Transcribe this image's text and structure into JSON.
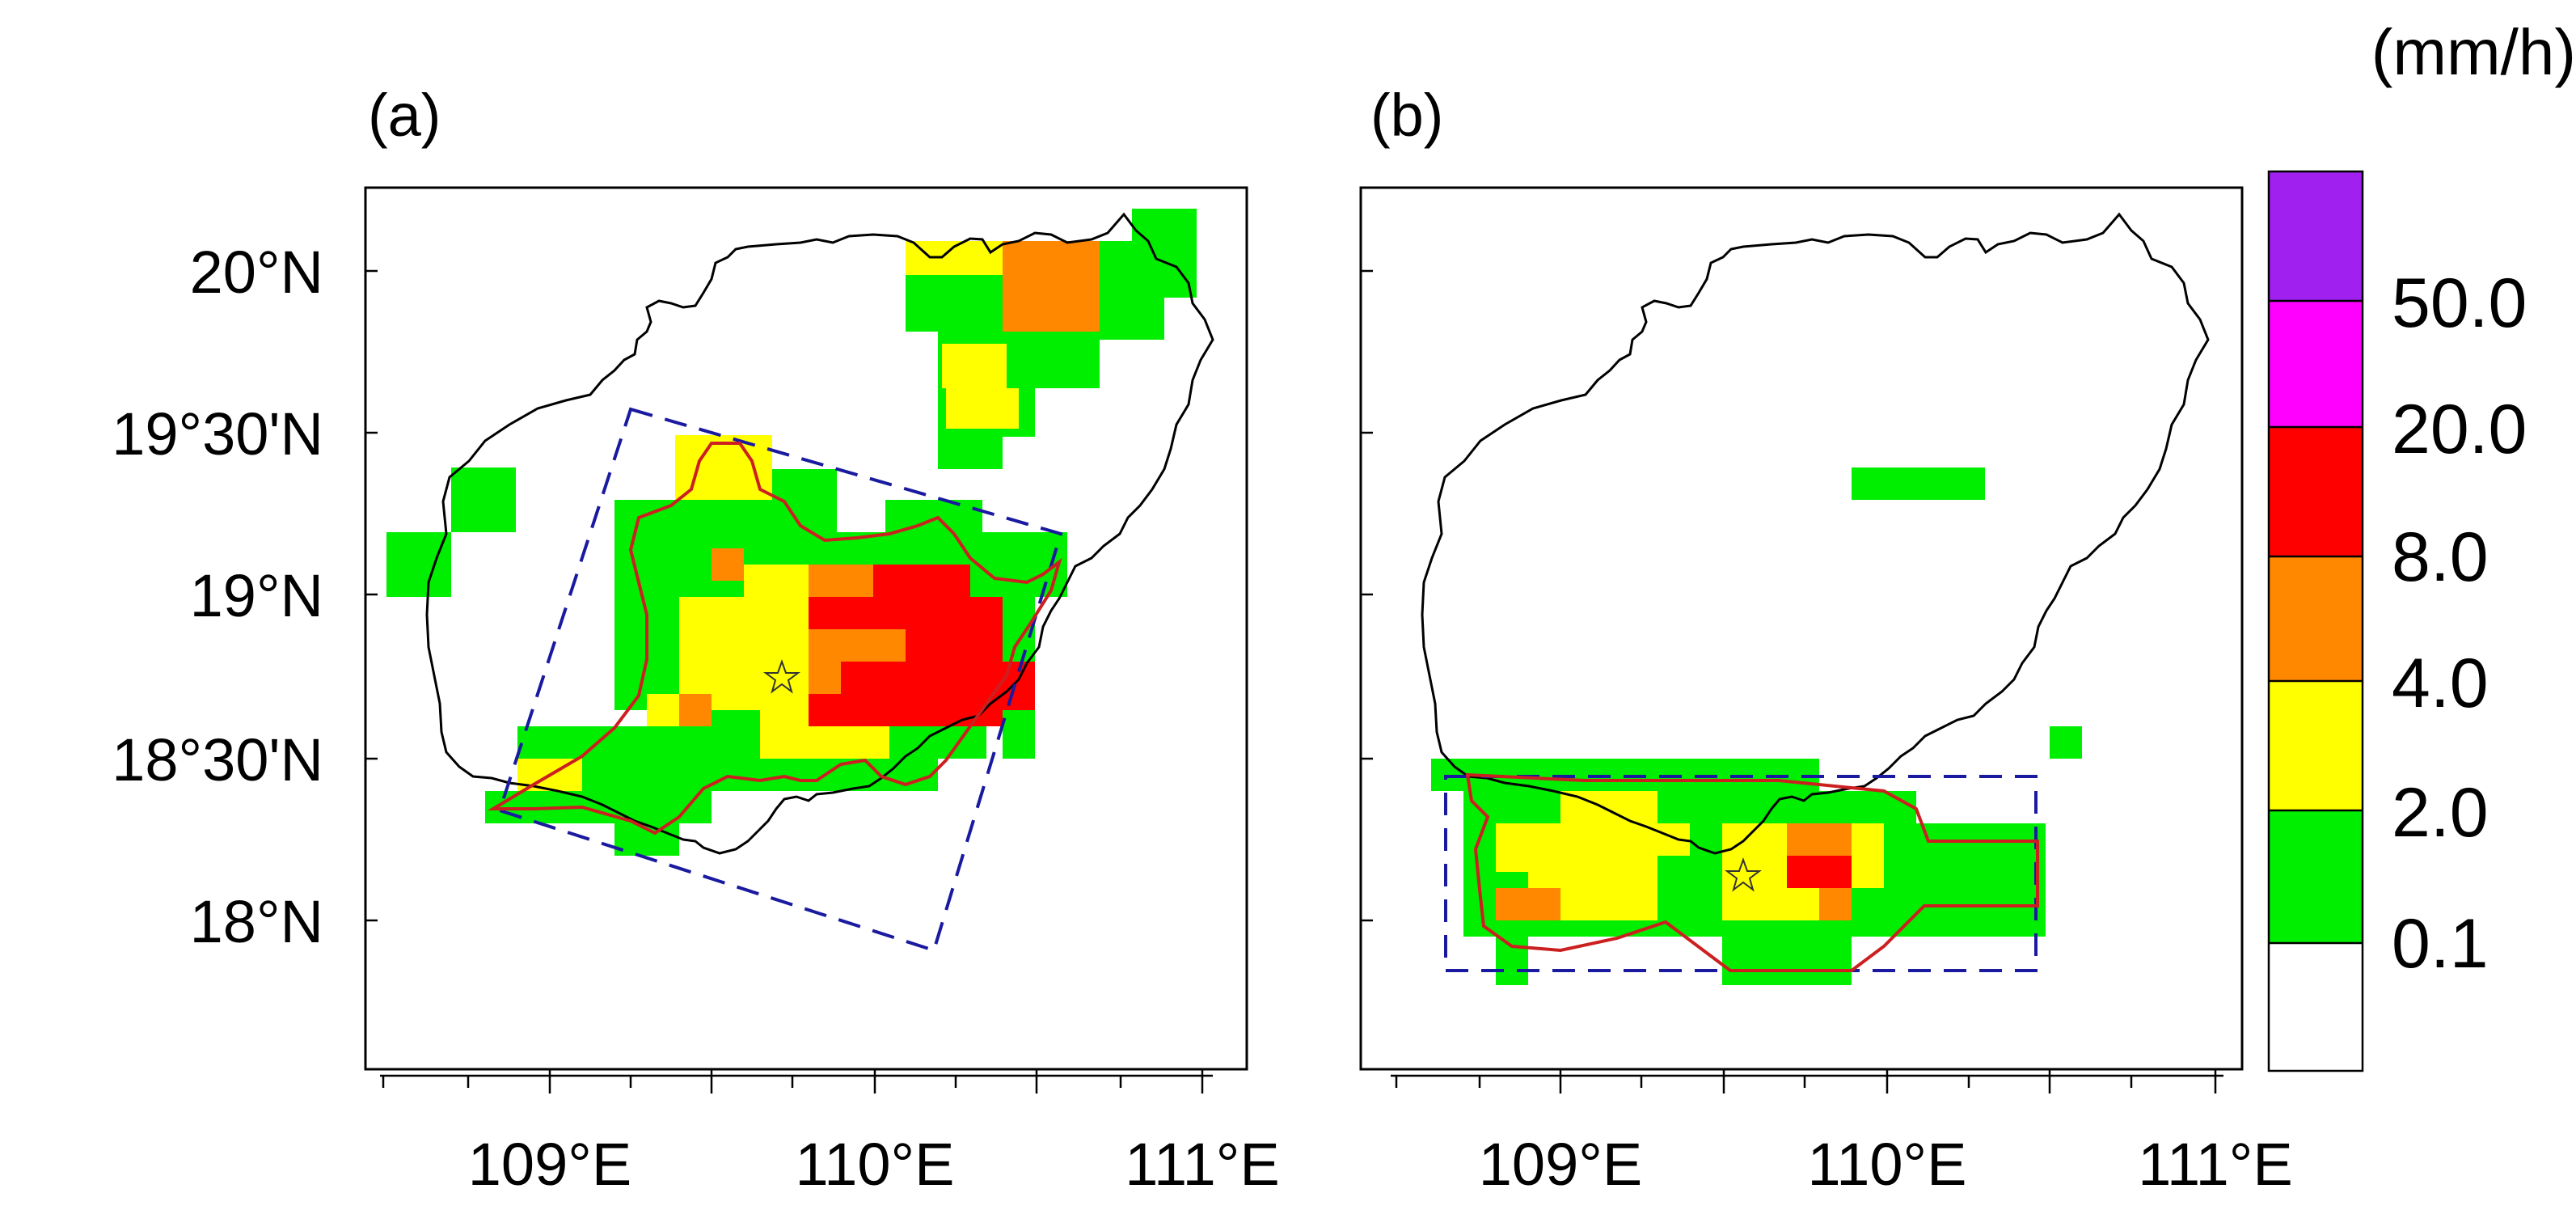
{
  "figure": {
    "unit_label": "(mm/h)",
    "colorbar": {
      "labels": [
        "0.1",
        "2.0",
        "4.0",
        "8.0",
        "20.0",
        "50.0"
      ],
      "colors": [
        "#ffffff",
        "#00ee00",
        "#ffff00",
        "#ff8800",
        "#ff0000",
        "#ff00ff",
        "#a020f0"
      ]
    },
    "axes": {
      "x_ticks": [
        "109°E",
        "110°E",
        "111°E"
      ],
      "y_ticks": [
        "20°N",
        "19°30'N",
        "19°N",
        "18°30'N",
        "18°N"
      ]
    },
    "overlay_colors": {
      "coastline": "#000000",
      "domain_box": "#1a1aa0",
      "rain_contour": "#cc2020",
      "star": "#333333"
    },
    "panels": [
      {
        "label": "(a)"
      },
      {
        "label": "(b)"
      }
    ]
  }
}
